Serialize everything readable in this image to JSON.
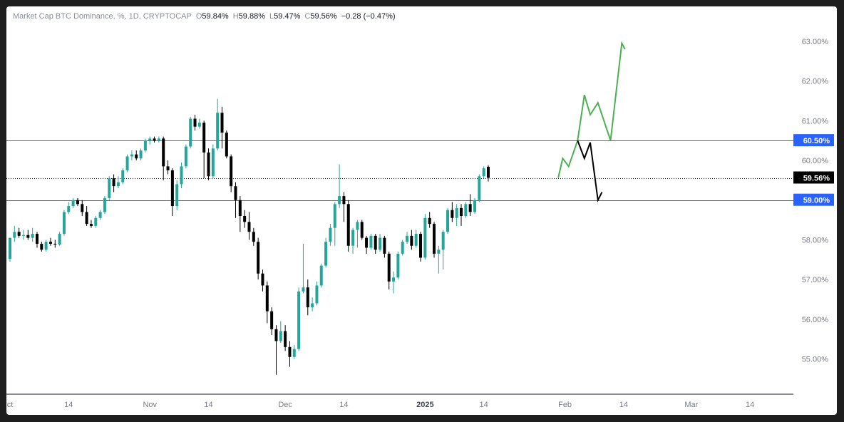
{
  "header": {
    "symbol": "Market Cap BTC Dominance, %, 1D, CRYPTOCAP",
    "o_label": "O",
    "o_value": "59.84%",
    "h_label": "H",
    "h_value": "59.88%",
    "l_label": "L",
    "l_value": "59.47%",
    "c_label": "C",
    "c_value": "59.56%",
    "change": "−0.28 (−0.47%)"
  },
  "colors": {
    "up": "#26a69a",
    "down": "#000000",
    "hline": "#2962ff",
    "projection_up": "#4caf50",
    "projection_down": "#000000",
    "axis_text": "#787b86"
  },
  "chart_data": {
    "type": "candlestick",
    "title": "Market Cap BTC Dominance",
    "ylabel": "%",
    "ylim": [
      54.2,
      63.9
    ],
    "yticks": [
      55.0,
      56.0,
      57.0,
      58.0,
      59.0,
      60.0,
      61.0,
      62.0,
      63.0
    ],
    "ytick_labels": [
      "55.00%",
      "56.00%",
      "57.00%",
      "58.00%",
      "59.00%",
      "60.00%",
      "61.00%",
      "62.00%",
      "63.00%"
    ],
    "xticks": [
      {
        "label": "ct",
        "day": 0
      },
      {
        "label": "14",
        "day": 13
      },
      {
        "label": "Nov",
        "day": 31
      },
      {
        "label": "14",
        "day": 44
      },
      {
        "label": "Dec",
        "day": 61
      },
      {
        "label": "14",
        "day": 74
      },
      {
        "label": "2025",
        "day": 92
      },
      {
        "label": "14",
        "day": 105
      },
      {
        "label": "Feb",
        "day": 123
      },
      {
        "label": "14",
        "day": 136
      },
      {
        "label": "Mar",
        "day": 151
      },
      {
        "label": "14",
        "day": 164
      }
    ],
    "candles": [
      {
        "o": 57.52,
        "h": 58.05,
        "l": 57.45,
        "c": 58.05
      },
      {
        "o": 58.05,
        "h": 58.35,
        "l": 57.95,
        "c": 58.2
      },
      {
        "o": 58.2,
        "h": 58.3,
        "l": 58.05,
        "c": 58.1
      },
      {
        "o": 58.1,
        "h": 58.25,
        "l": 58.0,
        "c": 58.12
      },
      {
        "o": 58.12,
        "h": 58.25,
        "l": 58.0,
        "c": 58.05
      },
      {
        "o": 58.05,
        "h": 58.3,
        "l": 57.95,
        "c": 58.15
      },
      {
        "o": 58.15,
        "h": 58.2,
        "l": 57.8,
        "c": 57.9
      },
      {
        "o": 57.9,
        "h": 57.95,
        "l": 57.7,
        "c": 57.75
      },
      {
        "o": 57.75,
        "h": 58.0,
        "l": 57.7,
        "c": 57.95
      },
      {
        "o": 57.95,
        "h": 58.05,
        "l": 57.85,
        "c": 57.9
      },
      {
        "o": 57.9,
        "h": 58.0,
        "l": 57.8,
        "c": 57.88
      },
      {
        "o": 57.88,
        "h": 58.2,
        "l": 57.85,
        "c": 58.15
      },
      {
        "o": 58.15,
        "h": 58.75,
        "l": 58.1,
        "c": 58.7
      },
      {
        "o": 58.7,
        "h": 58.95,
        "l": 58.65,
        "c": 58.85
      },
      {
        "o": 58.85,
        "h": 59.05,
        "l": 58.8,
        "c": 59.0
      },
      {
        "o": 59.0,
        "h": 59.05,
        "l": 58.85,
        "c": 58.9
      },
      {
        "o": 58.9,
        "h": 59.0,
        "l": 58.6,
        "c": 58.7
      },
      {
        "o": 58.7,
        "h": 58.85,
        "l": 58.35,
        "c": 58.4
      },
      {
        "o": 58.4,
        "h": 58.5,
        "l": 58.3,
        "c": 58.35
      },
      {
        "o": 58.35,
        "h": 58.6,
        "l": 58.3,
        "c": 58.55
      },
      {
        "o": 58.55,
        "h": 58.75,
        "l": 58.5,
        "c": 58.7
      },
      {
        "o": 58.7,
        "h": 59.1,
        "l": 58.65,
        "c": 59.05
      },
      {
        "o": 59.05,
        "h": 59.6,
        "l": 59.0,
        "c": 59.55
      },
      {
        "o": 59.55,
        "h": 59.65,
        "l": 59.2,
        "c": 59.35
      },
      {
        "o": 59.35,
        "h": 59.6,
        "l": 59.3,
        "c": 59.45
      },
      {
        "o": 59.45,
        "h": 59.8,
        "l": 59.4,
        "c": 59.75
      },
      {
        "o": 59.75,
        "h": 60.15,
        "l": 59.7,
        "c": 60.1
      },
      {
        "o": 60.1,
        "h": 60.25,
        "l": 60.0,
        "c": 60.15
      },
      {
        "o": 60.15,
        "h": 60.25,
        "l": 60.0,
        "c": 60.05
      },
      {
        "o": 60.05,
        "h": 60.3,
        "l": 60.0,
        "c": 60.25
      },
      {
        "o": 60.25,
        "h": 60.55,
        "l": 60.2,
        "c": 60.5
      },
      {
        "o": 60.5,
        "h": 60.6,
        "l": 60.4,
        "c": 60.55
      },
      {
        "o": 60.55,
        "h": 60.6,
        "l": 60.45,
        "c": 60.5
      },
      {
        "o": 60.5,
        "h": 60.6,
        "l": 60.45,
        "c": 60.55
      },
      {
        "o": 60.55,
        "h": 60.6,
        "l": 59.5,
        "c": 59.85
      },
      {
        "o": 59.85,
        "h": 60.0,
        "l": 59.65,
        "c": 59.75
      },
      {
        "o": 59.75,
        "h": 59.8,
        "l": 58.6,
        "c": 58.85
      },
      {
        "o": 58.85,
        "h": 59.5,
        "l": 58.75,
        "c": 59.4
      },
      {
        "o": 59.4,
        "h": 59.95,
        "l": 59.3,
        "c": 59.85
      },
      {
        "o": 59.85,
        "h": 60.4,
        "l": 59.8,
        "c": 60.35
      },
      {
        "o": 60.35,
        "h": 61.1,
        "l": 60.3,
        "c": 61.05
      },
      {
        "o": 61.05,
        "h": 61.15,
        "l": 60.75,
        "c": 60.85
      },
      {
        "o": 60.85,
        "h": 61.05,
        "l": 60.8,
        "c": 60.95
      },
      {
        "o": 60.95,
        "h": 61.0,
        "l": 59.55,
        "c": 60.2
      },
      {
        "o": 60.2,
        "h": 60.3,
        "l": 59.5,
        "c": 59.6
      },
      {
        "o": 59.6,
        "h": 60.4,
        "l": 59.55,
        "c": 60.3
      },
      {
        "o": 60.3,
        "h": 61.55,
        "l": 60.25,
        "c": 61.2
      },
      {
        "o": 61.2,
        "h": 61.35,
        "l": 60.3,
        "c": 60.7
      },
      {
        "o": 60.7,
        "h": 60.75,
        "l": 60.05,
        "c": 60.1
      },
      {
        "o": 60.1,
        "h": 60.15,
        "l": 59.2,
        "c": 59.35
      },
      {
        "o": 59.35,
        "h": 59.45,
        "l": 58.55,
        "c": 59.0
      },
      {
        "o": 59.0,
        "h": 59.1,
        "l": 58.2,
        "c": 58.6
      },
      {
        "o": 58.6,
        "h": 58.75,
        "l": 58.3,
        "c": 58.45
      },
      {
        "o": 58.45,
        "h": 58.7,
        "l": 58.0,
        "c": 58.2
      },
      {
        "o": 58.2,
        "h": 58.3,
        "l": 57.85,
        "c": 57.95
      },
      {
        "o": 57.95,
        "h": 58.05,
        "l": 57.0,
        "c": 57.15
      },
      {
        "o": 57.15,
        "h": 57.25,
        "l": 56.7,
        "c": 56.85
      },
      {
        "o": 56.85,
        "h": 56.95,
        "l": 55.9,
        "c": 56.2
      },
      {
        "o": 56.2,
        "h": 56.3,
        "l": 55.6,
        "c": 55.75
      },
      {
        "o": 55.75,
        "h": 55.85,
        "l": 54.6,
        "c": 55.45
      },
      {
        "o": 55.45,
        "h": 55.95,
        "l": 55.4,
        "c": 55.7
      },
      {
        "o": 55.7,
        "h": 55.85,
        "l": 55.2,
        "c": 55.3
      },
      {
        "o": 55.3,
        "h": 55.45,
        "l": 54.8,
        "c": 55.05
      },
      {
        "o": 55.05,
        "h": 55.35,
        "l": 55.0,
        "c": 55.25
      },
      {
        "o": 55.25,
        "h": 56.8,
        "l": 55.2,
        "c": 56.7
      },
      {
        "o": 56.7,
        "h": 57.9,
        "l": 56.65,
        "c": 56.8
      },
      {
        "o": 56.8,
        "h": 57.0,
        "l": 56.1,
        "c": 56.3
      },
      {
        "o": 56.3,
        "h": 56.55,
        "l": 56.2,
        "c": 56.4
      },
      {
        "o": 56.4,
        "h": 56.95,
        "l": 56.35,
        "c": 56.85
      },
      {
        "o": 56.85,
        "h": 57.4,
        "l": 56.8,
        "c": 57.35
      },
      {
        "o": 57.35,
        "h": 58.05,
        "l": 57.3,
        "c": 57.95
      },
      {
        "o": 57.95,
        "h": 58.4,
        "l": 57.85,
        "c": 58.3
      },
      {
        "o": 58.3,
        "h": 58.95,
        "l": 57.85,
        "c": 58.9
      },
      {
        "o": 58.9,
        "h": 59.9,
        "l": 58.8,
        "c": 59.1
      },
      {
        "o": 59.1,
        "h": 59.2,
        "l": 58.45,
        "c": 58.9
      },
      {
        "o": 58.9,
        "h": 59.0,
        "l": 57.7,
        "c": 57.85
      },
      {
        "o": 57.85,
        "h": 58.3,
        "l": 57.65,
        "c": 58.25
      },
      {
        "o": 58.25,
        "h": 58.5,
        "l": 57.8,
        "c": 58.45
      },
      {
        "o": 58.45,
        "h": 58.5,
        "l": 58.0,
        "c": 58.05
      },
      {
        "o": 58.05,
        "h": 58.1,
        "l": 57.65,
        "c": 57.8
      },
      {
        "o": 57.8,
        "h": 58.15,
        "l": 57.75,
        "c": 58.1
      },
      {
        "o": 58.1,
        "h": 58.15,
        "l": 57.65,
        "c": 57.75
      },
      {
        "o": 57.75,
        "h": 58.15,
        "l": 57.7,
        "c": 58.05
      },
      {
        "o": 58.05,
        "h": 58.1,
        "l": 57.55,
        "c": 57.65
      },
      {
        "o": 57.65,
        "h": 57.7,
        "l": 56.75,
        "c": 56.95
      },
      {
        "o": 56.95,
        "h": 57.2,
        "l": 56.65,
        "c": 57.05
      },
      {
        "o": 57.05,
        "h": 57.7,
        "l": 57.0,
        "c": 57.65
      },
      {
        "o": 57.65,
        "h": 58.0,
        "l": 57.6,
        "c": 57.95
      },
      {
        "o": 57.95,
        "h": 58.2,
        "l": 57.9,
        "c": 58.1
      },
      {
        "o": 58.1,
        "h": 58.25,
        "l": 57.75,
        "c": 57.85
      },
      {
        "o": 57.85,
        "h": 58.25,
        "l": 57.8,
        "c": 58.15
      },
      {
        "o": 58.15,
        "h": 58.2,
        "l": 57.45,
        "c": 57.55
      },
      {
        "o": 57.55,
        "h": 58.65,
        "l": 57.5,
        "c": 58.55
      },
      {
        "o": 58.55,
        "h": 58.7,
        "l": 58.3,
        "c": 58.4
      },
      {
        "o": 58.4,
        "h": 58.45,
        "l": 57.55,
        "c": 57.65
      },
      {
        "o": 57.65,
        "h": 57.85,
        "l": 57.15,
        "c": 57.75
      },
      {
        "o": 57.75,
        "h": 58.25,
        "l": 57.25,
        "c": 58.2
      },
      {
        "o": 58.2,
        "h": 58.8,
        "l": 58.15,
        "c": 58.75
      },
      {
        "o": 58.75,
        "h": 58.95,
        "l": 58.45,
        "c": 58.55
      },
      {
        "o": 58.55,
        "h": 58.9,
        "l": 58.35,
        "c": 58.8
      },
      {
        "o": 58.8,
        "h": 58.9,
        "l": 58.35,
        "c": 58.6
      },
      {
        "o": 58.6,
        "h": 58.95,
        "l": 58.55,
        "c": 58.9
      },
      {
        "o": 58.9,
        "h": 59.15,
        "l": 58.6,
        "c": 58.7
      },
      {
        "o": 58.7,
        "h": 59.05,
        "l": 58.65,
        "c": 59.0
      },
      {
        "o": 59.0,
        "h": 59.65,
        "l": 58.95,
        "c": 59.6
      },
      {
        "o": 59.6,
        "h": 59.85,
        "l": 59.55,
        "c": 59.8
      },
      {
        "o": 59.84,
        "h": 59.88,
        "l": 59.47,
        "c": 59.56
      }
    ],
    "horizontal_lines": [
      {
        "value": 60.5,
        "label": "60.50%"
      },
      {
        "value": 59.0,
        "label": "59.00%"
      }
    ],
    "last_price": {
      "value": 59.56,
      "label": "59.56%"
    },
    "projections": [
      {
        "name": "bullish",
        "points": [
          [
            121.5,
            59.56
          ],
          [
            122.5,
            60.05
          ],
          [
            123.8,
            59.85
          ],
          [
            125.8,
            60.5
          ],
          [
            127.3,
            61.65
          ],
          [
            128.6,
            61.15
          ],
          [
            130.3,
            61.45
          ],
          [
            133.1,
            60.5
          ],
          [
            135.6,
            62.95
          ],
          [
            136.3,
            62.8
          ]
        ]
      },
      {
        "name": "bearish",
        "points": [
          [
            125.8,
            60.5
          ],
          [
            127.3,
            60.05
          ],
          [
            128.6,
            60.45
          ],
          [
            130.3,
            59.0
          ],
          [
            131.2,
            59.2
          ]
        ]
      }
    ]
  }
}
